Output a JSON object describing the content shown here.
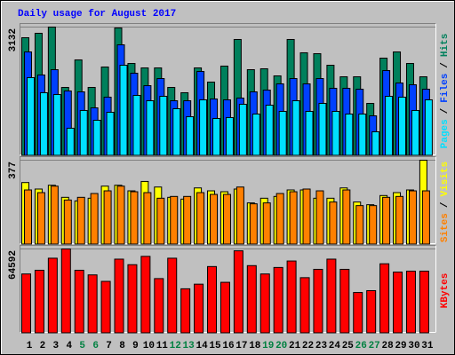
{
  "chart_data": [
    {
      "type": "bar",
      "title": "Daily usage for August 2017",
      "ylim": [
        0,
        3132
      ],
      "yticks": [
        3132
      ],
      "legend_separator": "/",
      "series": [
        {
          "name": "Hits",
          "color": "#00805c",
          "values": [
            2873,
            2981,
            3132,
            1663,
            2333,
            1663,
            2160,
            3110,
            2246,
            2138,
            2138,
            1663,
            1534,
            2138,
            1793,
            2182,
            2830,
            2095,
            2117,
            1944,
            2830,
            2506,
            2484,
            2203,
            1922,
            1922,
            1274,
            2376,
            2527,
            2246,
            1922
          ]
        },
        {
          "name": "Files",
          "color": "#0040ff",
          "values": [
            2527,
            1966,
            2095,
            1577,
            1555,
            1166,
            1426,
            2700,
            2009,
            1706,
            1879,
            1339,
            1339,
            2052,
            1382,
            1361,
            1404,
            1555,
            1598,
            1750,
            1879,
            1750,
            1879,
            1642,
            1642,
            1620,
            972,
            2074,
            1771,
            1728,
            1620
          ]
        },
        {
          "name": "Pages",
          "color": "#00e0ff",
          "values": [
            1901,
            1534,
            1490,
            670,
            1102,
            864,
            1058,
            2203,
            1469,
            1339,
            1447,
            1145,
            950,
            1361,
            907,
            929,
            1253,
            1015,
            1231,
            1080,
            1339,
            1080,
            1274,
            1080,
            1015,
            1015,
            583,
            1447,
            1426,
            1102,
            1361
          ]
        }
      ]
    },
    {
      "type": "bar",
      "ylim": [
        0,
        377
      ],
      "yticks": [
        377
      ],
      "legend_separator": "/",
      "series": [
        {
          "name": "Visits",
          "color": "#ffff00",
          "values": [
            277,
            248,
            265,
            211,
            195,
            207,
            261,
            265,
            240,
            282,
            257,
            211,
            203,
            253,
            240,
            236,
            248,
            186,
            207,
            215,
            244,
            244,
            207,
            207,
            253,
            190,
            178,
            219,
            232,
            244,
            377
          ]
        },
        {
          "name": "Sites",
          "color": "#ff8000",
          "values": [
            244,
            232,
            261,
            199,
            211,
            228,
            240,
            261,
            236,
            232,
            207,
            215,
            215,
            232,
            224,
            224,
            257,
            182,
            186,
            228,
            236,
            248,
            240,
            190,
            244,
            174,
            174,
            211,
            215,
            240,
            240
          ]
        }
      ]
    },
    {
      "type": "bar",
      "ylim": [
        0,
        64592
      ],
      "yticks": [
        64592
      ],
      "categories": [
        "1",
        "2",
        "3",
        "4",
        "5",
        "6",
        "7",
        "8",
        "9",
        "10",
        "11",
        "12",
        "13",
        "14",
        "15",
        "16",
        "17",
        "18",
        "19",
        "20",
        "21",
        "22",
        "23",
        "24",
        "25",
        "26",
        "27",
        "28",
        "29",
        "30",
        "31"
      ],
      "category_colors": [
        "#000000",
        "#000000",
        "#000000",
        "#000000",
        "#008040",
        "#008040",
        "#000000",
        "#000000",
        "#000000",
        "#000000",
        "#000000",
        "#008040",
        "#008040",
        "#000000",
        "#000000",
        "#000000",
        "#000000",
        "#000000",
        "#008040",
        "#008040",
        "#000000",
        "#000000",
        "#000000",
        "#000000",
        "#000000",
        "#008040",
        "#008040",
        "#000000",
        "#000000",
        "#000000",
        "#000000"
      ],
      "series": [
        {
          "name": "KBytes",
          "color": "#ff0000",
          "values": [
            45427,
            48266,
            57494,
            64592,
            48266,
            44717,
            39749,
            56784,
            52525,
            58913,
            41878,
            57494,
            34070,
            37619,
            51106,
            39039,
            63172,
            51815,
            45427,
            50396,
            55364,
            42588,
            48976,
            56784,
            48976,
            31231,
            32651,
            53235,
            46847,
            47557,
            47557
          ]
        }
      ]
    }
  ]
}
